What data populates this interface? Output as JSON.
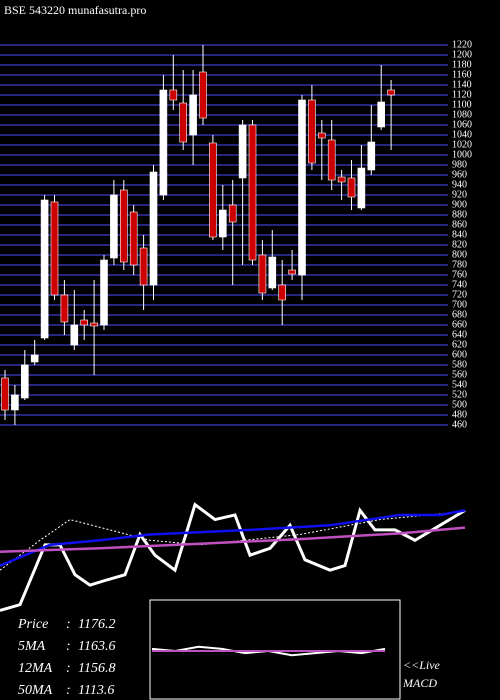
{
  "chart_data": [
    {
      "type": "candlestick",
      "title": "BSE 543220 munafasutra.pro",
      "up_color": "#ffffff",
      "down_color": "#cc0000",
      "grid_color": "#26267e",
      "ylim": [
        450,
        1240
      ],
      "yticks": [
        460,
        480,
        500,
        520,
        540,
        560,
        580,
        600,
        620,
        640,
        660,
        680,
        700,
        720,
        740,
        760,
        780,
        800,
        820,
        840,
        860,
        880,
        900,
        920,
        940,
        960,
        980,
        1000,
        1020,
        1040,
        1060,
        1080,
        1100,
        1120,
        1140,
        1160,
        1180,
        1200,
        1220
      ],
      "open": [
        554,
        490,
        514,
        586,
        634,
        906,
        720,
        620,
        670,
        664,
        660,
        794,
        930,
        886,
        814,
        740,
        920,
        1130,
        1104,
        1040,
        1166,
        1024,
        836,
        900,
        954,
        1060,
        800,
        734,
        740,
        770,
        760,
        1110,
        1044,
        1030,
        956,
        954,
        894,
        970,
        1056,
        1130
      ],
      "high": [
        570,
        540,
        610,
        630,
        920,
        920,
        750,
        730,
        690,
        750,
        800,
        950,
        950,
        900,
        840,
        980,
        1160,
        1200,
        1170,
        1170,
        1220,
        1040,
        940,
        950,
        1070,
        1070,
        830,
        850,
        790,
        810,
        1120,
        1140,
        1070,
        1070,
        970,
        990,
        1020,
        1100,
        1180,
        1150
      ],
      "low": [
        470,
        460,
        510,
        580,
        630,
        710,
        640,
        610,
        630,
        560,
        650,
        780,
        770,
        760,
        690,
        710,
        910,
        1090,
        1010,
        980,
        1060,
        830,
        810,
        740,
        780,
        780,
        710,
        730,
        660,
        750,
        710,
        970,
        950,
        930,
        910,
        890,
        890,
        960,
        1050,
        1010
      ],
      "close": [
        490,
        520,
        580,
        600,
        910,
        720,
        666,
        660,
        660,
        658,
        790,
        920,
        786,
        780,
        740,
        966,
        1130,
        1110,
        1026,
        1120,
        1074,
        836,
        890,
        866,
        1060,
        790,
        724,
        796,
        710,
        762,
        1110,
        984,
        1034,
        950,
        946,
        916,
        974,
        1026,
        1106,
        1120
      ],
      "stats_sep": ":",
      "stats": [
        {
          "label": "Price",
          "value": 1176.2
        },
        {
          "label": "5MA",
          "value": 1163.6
        },
        {
          "label": "12MA",
          "value": 1156.8
        },
        {
          "label": "50MA",
          "value": 1113.6
        }
      ]
    },
    {
      "type": "line",
      "xlim": [
        0,
        465
      ],
      "ylim": [
        0,
        100
      ],
      "series": [
        {
          "color": "#ffffff",
          "width": 3,
          "x": [
            0,
            20,
            45,
            60,
            75,
            90,
            105,
            125,
            140,
            155,
            175,
            195,
            215,
            235,
            250,
            270,
            290,
            305,
            330,
            345,
            360,
            375,
            395,
            415,
            440,
            465
          ],
          "values": [
            4,
            9,
            61,
            61,
            35,
            26,
            30,
            35,
            70,
            52,
            39,
            96,
            83,
            87,
            52,
            58,
            78,
            48,
            39,
            43,
            91,
            74,
            74,
            65,
            78,
            91
          ]
        },
        {
          "color": "#ffffff",
          "width": 1,
          "dash": true,
          "x": [
            0,
            40,
            70,
            110,
            150,
            200,
            300,
            380,
            465
          ],
          "values": [
            39,
            65,
            83,
            74,
            65,
            61,
            70,
            83,
            90
          ]
        },
        {
          "color": "#1010ee",
          "width": 2.5,
          "x": [
            0,
            50,
            100,
            150,
            250,
            330,
            400,
            440,
            465
          ],
          "values": [
            43,
            61,
            65,
            70,
            74,
            78,
            87,
            87,
            91
          ]
        },
        {
          "color": "#c050c0",
          "width": 2.5,
          "x": [
            0,
            100,
            200,
            300,
            400,
            465
          ],
          "values": [
            55,
            58,
            62,
            66,
            71,
            76
          ]
        }
      ]
    },
    {
      "type": "line",
      "title": "MACD",
      "annotation": "<<Live",
      "xlim": [
        0,
        10
      ],
      "ylim": [
        -1,
        1
      ],
      "series": [
        {
          "color": "#ffffff",
          "width": 2,
          "x": [
            0,
            1,
            2,
            3,
            4,
            5,
            6,
            7,
            8,
            9,
            10
          ],
          "values": [
            0.1,
            0,
            0.2,
            0.1,
            -0.1,
            0,
            -0.2,
            -0.1,
            0,
            -0.1,
            0.1
          ]
        },
        {
          "color": "#c050c0",
          "width": 2,
          "x": [
            0,
            10
          ],
          "values": [
            0,
            0
          ]
        }
      ]
    }
  ]
}
